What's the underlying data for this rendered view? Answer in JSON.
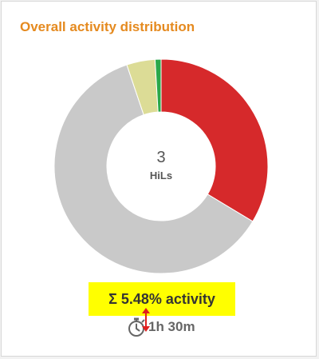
{
  "card": {
    "title": "Overall activity distribution"
  },
  "chart_data": {
    "type": "pie",
    "values": [
      33.6,
      61.2,
      4.3,
      0.9
    ],
    "colors": [
      "#d6292b",
      "#c9c9c9",
      "#dcdc96",
      "#2aa84a"
    ],
    "center": {
      "value": "3",
      "label": "HiLs"
    }
  },
  "summary": {
    "activity": "Σ 5.48% activity",
    "duration": "1h 30m"
  },
  "icons": {
    "duration": "stopwatch-icon",
    "marker": "up-down-arrow-icon"
  }
}
